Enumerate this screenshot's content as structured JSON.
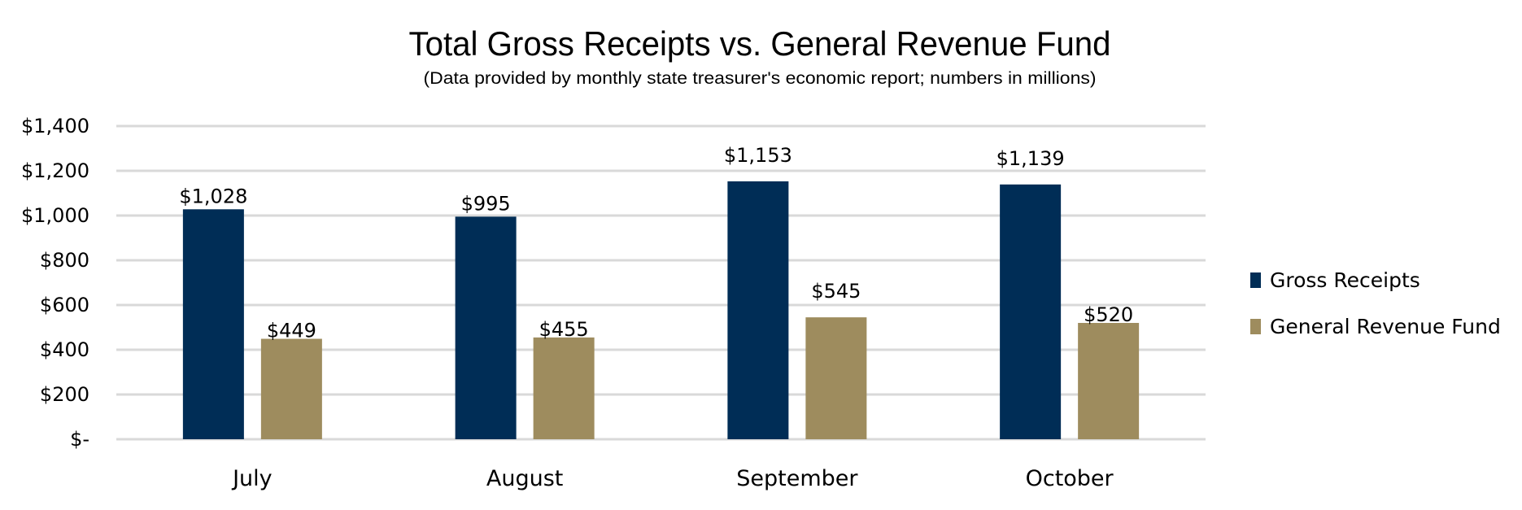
{
  "chart_data": {
    "type": "bar",
    "title": "Total Gross Receipts vs. General Revenue Fund",
    "subtitle": "(Data provided by monthly state treasurer's economic report; numbers in millions)",
    "categories": [
      "July",
      "August",
      "September",
      "October"
    ],
    "series": [
      {
        "name": "Gross Receipts",
        "color": "#002d56",
        "values": [
          1028,
          995,
          1153,
          1139
        ],
        "labels": [
          "$1,028",
          "$995",
          "$1,153",
          "$1,139"
        ]
      },
      {
        "name": "General Revenue Fund",
        "color": "#9e8c5e",
        "values": [
          449,
          455,
          545,
          520
        ],
        "labels": [
          "$449",
          "$455",
          "$545",
          "$520"
        ]
      }
    ],
    "yticks": [
      0,
      200,
      400,
      600,
      800,
      1000,
      1200,
      1400
    ],
    "ytick_labels": [
      "$-",
      "$200",
      "$400",
      "$600",
      "$800",
      "$1,000",
      "$1,200",
      "$1,400"
    ],
    "ylim": [
      0,
      1400
    ],
    "xlabel": "",
    "ylabel": "",
    "grid": true,
    "legend_position": "right"
  }
}
